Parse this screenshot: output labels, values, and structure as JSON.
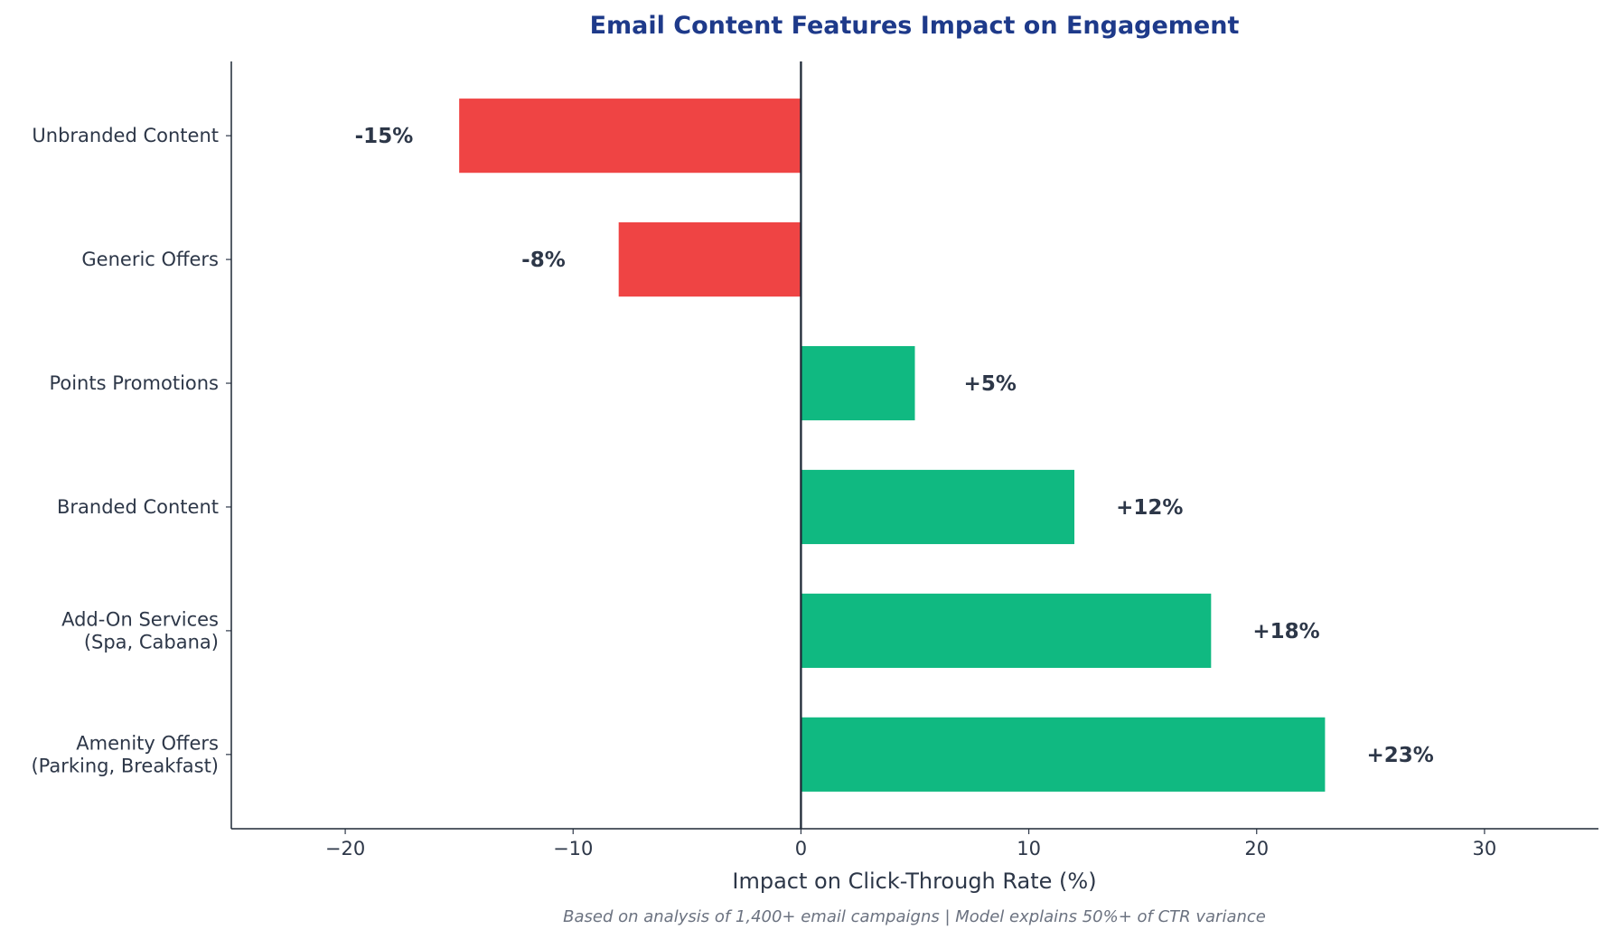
{
  "chart_data": {
    "type": "bar",
    "orientation": "horizontal",
    "title": "Email Content Features Impact on Engagement",
    "xlabel": "Impact on Click-Through Rate (%)",
    "ylabel": "",
    "footnote": "Based on analysis of 1,400+ email campaigns | Model explains 50%+ of CTR variance",
    "categories": [
      "Amenity Offers\n(Parking, Breakfast)",
      "Add-On Services\n(Spa, Cabana)",
      "Branded Content",
      "Points Promotions",
      "Generic Offers",
      "Unbranded Content"
    ],
    "values": [
      23,
      18,
      12,
      5,
      -8,
      -15
    ],
    "data_labels": [
      "+23%",
      "+18%",
      "+12%",
      "+5%",
      "-8%",
      "-15%"
    ],
    "xlim": [
      -25,
      35
    ],
    "xticks": [
      -20,
      -10,
      0,
      10,
      20,
      30
    ],
    "xtick_labels": [
      "−20",
      "−10",
      "0",
      "10",
      "20",
      "30"
    ],
    "grid": false,
    "colors": {
      "positive": "#10b981",
      "negative": "#ef4444",
      "zero_line": "#1f2937",
      "title": "#1e3a8a"
    }
  }
}
